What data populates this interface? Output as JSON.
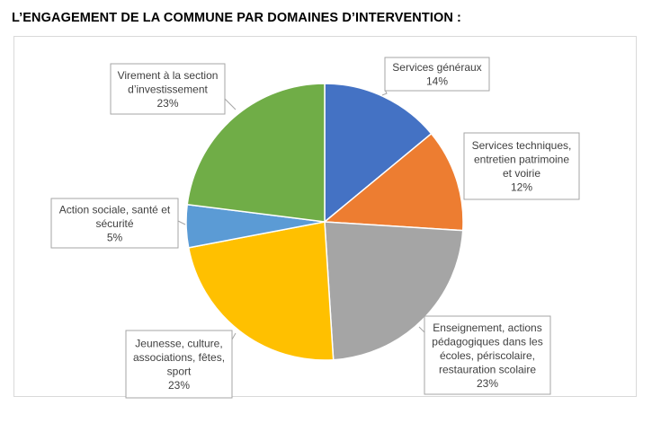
{
  "title": "L’ENGAGEMENT DE LA COMMUNE PAR DOMAINES D’INTERVENTION :",
  "chart_data": {
    "type": "pie",
    "title": "",
    "start_angle_deg": 0,
    "direction": "clockwise",
    "legend": "none",
    "slices": [
      {
        "label": "Services généraux",
        "value": 14,
        "display": "14%",
        "color": "#4472c4"
      },
      {
        "label": "Services techniques, entretien patrimoine et voirie",
        "value": 12,
        "display": "12%",
        "color": "#ed7d31"
      },
      {
        "label": "Enseignement, actions pédagogiques dans les écoles, périscolaire, restauration scolaire",
        "value": 23,
        "display": "23%",
        "color": "#a5a5a5"
      },
      {
        "label": "Jeunesse, culture, associations, fêtes, sport",
        "value": 23,
        "display": "23%",
        "color": "#ffc000"
      },
      {
        "label": "Action sociale, santé et sécurité",
        "value": 5,
        "display": "5%",
        "color": "#5b9bd5"
      },
      {
        "label": "Virement à la section d’investissement",
        "value": 23,
        "display": "23%",
        "color": "#70ad47"
      }
    ]
  }
}
